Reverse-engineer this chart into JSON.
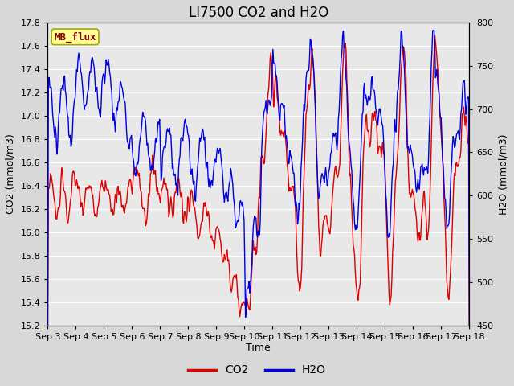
{
  "title": "LI7500 CO2 and H2O",
  "xlabel": "Time",
  "ylabel_left": "CO2 (mmol/m3)",
  "ylabel_right": "H2O (mmol/m3)",
  "co2_ylim": [
    15.2,
    17.8
  ],
  "h2o_ylim": [
    450,
    800
  ],
  "co2_yticks": [
    15.2,
    15.4,
    15.6,
    15.8,
    16.0,
    16.2,
    16.4,
    16.6,
    16.8,
    17.0,
    17.2,
    17.4,
    17.6,
    17.8
  ],
  "h2o_yticks": [
    450,
    500,
    550,
    600,
    650,
    700,
    750,
    800
  ],
  "xtick_labels": [
    "Sep 3",
    "Sep 4",
    "Sep 5",
    "Sep 6",
    "Sep 7",
    "Sep 8",
    "Sep 9",
    "Sep 10",
    "Sep 11",
    "Sep 12",
    "Sep 13",
    "Sep 14",
    "Sep 15",
    "Sep 16",
    "Sep 17",
    "Sep 18"
  ],
  "co2_color": "#dd0000",
  "h2o_color": "#0000dd",
  "fig_bg_color": "#d8d8d8",
  "plot_bg": "#e8e8e8",
  "watermark_text": "MB_flux",
  "watermark_fg": "#8b0000",
  "watermark_bg": "#ffff99",
  "legend_co2": "CO2",
  "legend_h2o": "H2O",
  "title_fontsize": 12,
  "axis_fontsize": 9,
  "tick_fontsize": 8,
  "linewidth": 1.0
}
